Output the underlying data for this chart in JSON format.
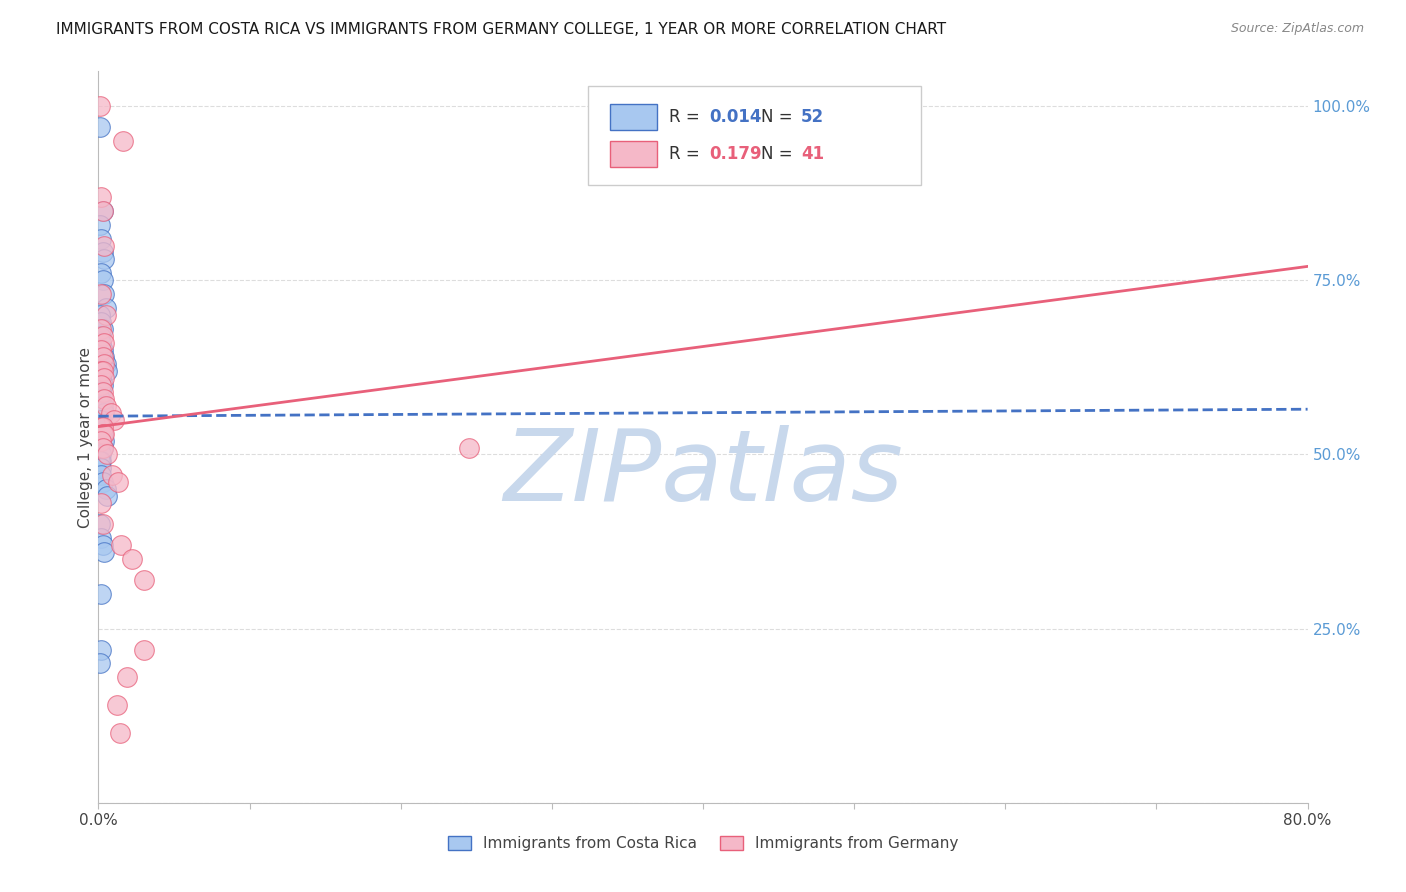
{
  "title": "IMMIGRANTS FROM COSTA RICA VS IMMIGRANTS FROM GERMANY COLLEGE, 1 YEAR OR MORE CORRELATION CHART",
  "source": "Source: ZipAtlas.com",
  "ylabel": "College, 1 year or more",
  "right_yticks": [
    0.0,
    0.25,
    0.5,
    0.75,
    1.0
  ],
  "right_yticklabels": [
    "",
    "25.0%",
    "50.0%",
    "75.0%",
    "100.0%"
  ],
  "legend_r_blue": "0.014",
  "legend_n_blue": "52",
  "legend_r_pink": "0.179",
  "legend_n_pink": "41",
  "blue_color": "#A8C8F0",
  "pink_color": "#F5B8C8",
  "blue_line_color": "#4472C4",
  "pink_line_color": "#E8607A",
  "legend_label_blue": "Immigrants from Costa Rica",
  "legend_label_pink": "Immigrants from Germany",
  "watermark": "ZIPatlas",
  "blue_scatter_x": [
    0.001,
    0.003,
    0.001,
    0.002,
    0.003,
    0.004,
    0.002,
    0.003,
    0.004,
    0.005,
    0.001,
    0.002,
    0.003,
    0.001,
    0.002,
    0.003,
    0.004,
    0.005,
    0.006,
    0.001,
    0.002,
    0.003,
    0.001,
    0.002,
    0.001,
    0.002,
    0.003,
    0.004,
    0.002,
    0.001,
    0.002,
    0.002,
    0.003,
    0.004,
    0.002,
    0.001,
    0.003,
    0.002,
    0.002,
    0.001,
    0.002,
    0.002,
    0.003,
    0.005,
    0.006,
    0.001,
    0.002,
    0.003,
    0.004,
    0.002,
    0.002,
    0.001
  ],
  "blue_scatter_y": [
    0.97,
    0.85,
    0.83,
    0.81,
    0.79,
    0.78,
    0.76,
    0.75,
    0.73,
    0.71,
    0.7,
    0.69,
    0.68,
    0.67,
    0.66,
    0.65,
    0.64,
    0.63,
    0.62,
    0.62,
    0.61,
    0.6,
    0.59,
    0.59,
    0.58,
    0.57,
    0.57,
    0.56,
    0.55,
    0.55,
    0.54,
    0.53,
    0.53,
    0.52,
    0.52,
    0.51,
    0.51,
    0.5,
    0.49,
    0.49,
    0.48,
    0.47,
    0.46,
    0.45,
    0.44,
    0.4,
    0.38,
    0.37,
    0.36,
    0.3,
    0.22,
    0.2
  ],
  "pink_scatter_x": [
    0.001,
    0.002,
    0.003,
    0.004,
    0.002,
    0.005,
    0.002,
    0.003,
    0.004,
    0.002,
    0.003,
    0.004,
    0.002,
    0.003,
    0.004,
    0.002,
    0.003,
    0.004,
    0.005,
    0.008,
    0.01,
    0.002,
    0.003,
    0.003,
    0.004,
    0.002,
    0.003,
    0.006,
    0.009,
    0.013,
    0.002,
    0.003,
    0.015,
    0.022,
    0.03,
    0.03,
    0.245,
    0.019,
    0.012,
    0.014,
    0.016
  ],
  "pink_scatter_y": [
    1.0,
    0.87,
    0.85,
    0.8,
    0.73,
    0.7,
    0.68,
    0.67,
    0.66,
    0.65,
    0.64,
    0.63,
    0.62,
    0.62,
    0.61,
    0.6,
    0.59,
    0.58,
    0.57,
    0.56,
    0.55,
    0.54,
    0.54,
    0.53,
    0.53,
    0.52,
    0.51,
    0.5,
    0.47,
    0.46,
    0.43,
    0.4,
    0.37,
    0.35,
    0.32,
    0.22,
    0.51,
    0.18,
    0.14,
    0.1,
    0.95
  ],
  "blue_line_start_x": 0.0,
  "blue_line_end_x": 0.8,
  "blue_line_start_y": 0.555,
  "blue_line_end_y": 0.565,
  "pink_line_start_x": 0.0,
  "pink_line_end_x": 0.8,
  "pink_line_start_y": 0.54,
  "pink_line_end_y": 0.77,
  "xlim": [
    0.0,
    0.8
  ],
  "ylim": [
    0.0,
    1.05
  ],
  "grid_color": "#DDDDDD",
  "background_color": "#FFFFFF",
  "title_fontsize": 11,
  "axis_label_color": "#444444",
  "right_axis_color": "#5B9BD5",
  "watermark_color": "#C8D8EC",
  "watermark_fontsize": 72,
  "xtick_labels": [
    "0.0%",
    "",
    "",
    "",
    "",
    "",
    "",
    "",
    "80.0%"
  ]
}
